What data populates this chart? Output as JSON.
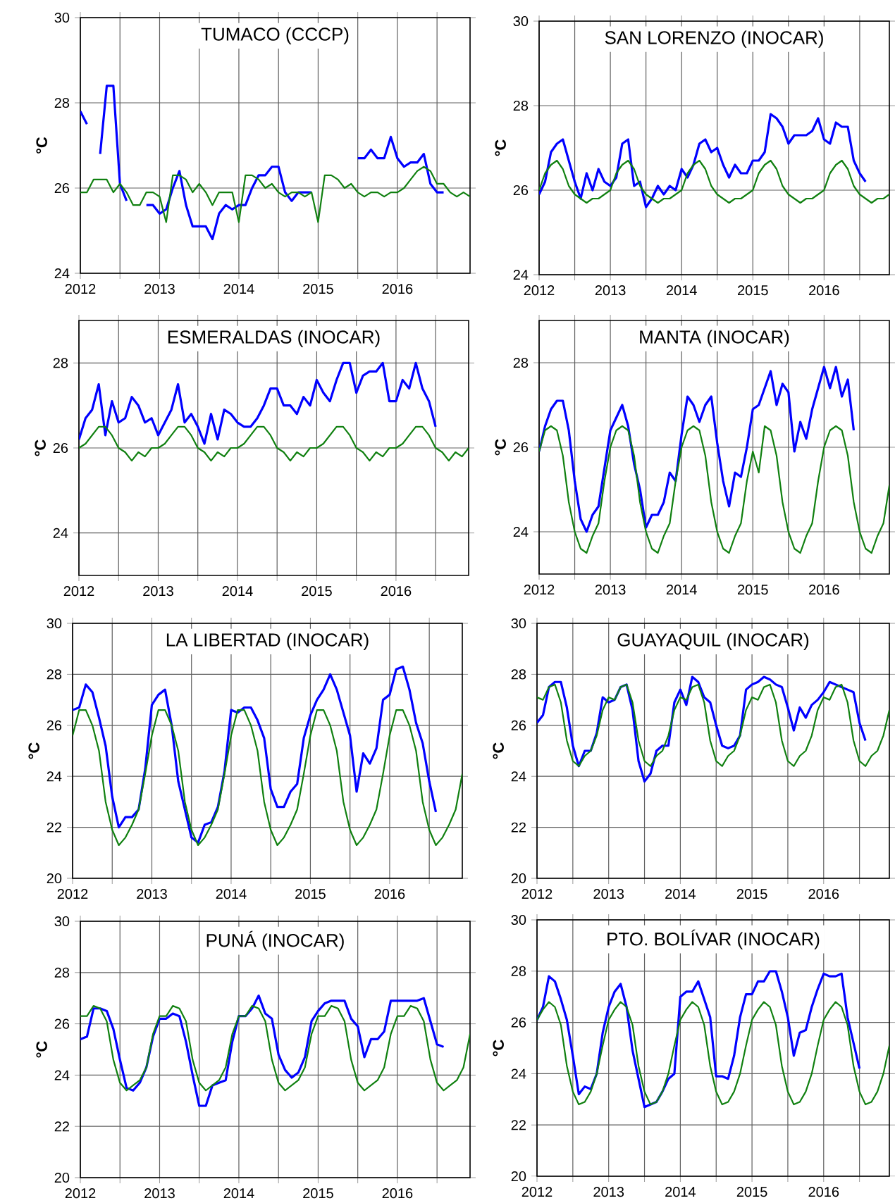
{
  "chart_data": [
    {
      "type": "line",
      "title": "TUMACO (CCCP)",
      "ylabel": "°C",
      "grid": true,
      "x": [
        "2012-01",
        "2012-02",
        "2012-03",
        "2012-04",
        "2012-05",
        "2012-06",
        "2012-07",
        "2012-08",
        "2012-09",
        "2012-10",
        "2012-11",
        "2012-12",
        "2013-01",
        "2013-02",
        "2013-03",
        "2013-04",
        "2013-05",
        "2013-06",
        "2013-07",
        "2013-08",
        "2013-09",
        "2013-10",
        "2013-11",
        "2013-12",
        "2014-01",
        "2014-02",
        "2014-03",
        "2014-04",
        "2014-05",
        "2014-06",
        "2014-07",
        "2014-08",
        "2014-09",
        "2014-10",
        "2014-11",
        "2014-12",
        "2015-01",
        "2015-02",
        "2015-03",
        "2015-04",
        "2015-05",
        "2015-06",
        "2015-07",
        "2015-08",
        "2015-09",
        "2015-10",
        "2015-11",
        "2015-12",
        "2016-01",
        "2016-02",
        "2016-03",
        "2016-04",
        "2016-05",
        "2016-06",
        "2016-07",
        "2016-08",
        "2016-09",
        "2016-10",
        "2016-11",
        "2016-12"
      ],
      "xlim": [
        "2012-01",
        "2016-12"
      ],
      "xticks": [
        "2012",
        {
          "value": "2012-07",
          "label": null
        },
        "2013",
        {
          "value": "2013-07",
          "label": null
        },
        "2014",
        {
          "value": "2014-07",
          "label": null
        },
        "2015",
        {
          "value": "2015-07",
          "label": null
        },
        "2016",
        {
          "value": "2016-07",
          "label": null
        }
      ],
      "ylim": [
        24,
        30
      ],
      "yticks": [
        24,
        26,
        28,
        30
      ],
      "series": [
        {
          "color": "#0000ff",
          "values": [
            27.8,
            27.5,
            null,
            26.8,
            28.4,
            28.4,
            26.1,
            25.7,
            null,
            null,
            25.6,
            25.6,
            25.4,
            25.5,
            26.0,
            26.4,
            25.6,
            25.1,
            25.1,
            25.1,
            24.8,
            25.4,
            25.6,
            25.5,
            25.6,
            25.6,
            26.0,
            26.3,
            26.3,
            26.5,
            26.5,
            25.9,
            25.7,
            25.9,
            25.9,
            25.9,
            null,
            null,
            null,
            null,
            null,
            null,
            26.7,
            26.7,
            26.9,
            26.7,
            26.7,
            27.2,
            26.7,
            26.5,
            26.6,
            26.6,
            26.8,
            26.1,
            25.9,
            25.9,
            null,
            null,
            null,
            null
          ]
        },
        {
          "color": "#108010",
          "values": [
            25.9,
            25.9,
            26.2,
            26.2,
            26.2,
            25.9,
            26.1,
            25.9,
            25.6,
            25.6,
            25.9,
            25.9,
            25.8,
            25.2,
            26.3,
            26.3,
            26.2,
            25.9,
            26.1,
            25.9,
            25.6,
            25.9,
            25.9,
            25.9,
            25.2,
            26.3,
            26.3,
            26.2,
            26.0,
            26.1,
            25.9,
            25.8,
            25.9,
            25.9,
            25.8,
            25.9,
            25.2,
            26.3,
            26.3,
            26.2,
            26.0,
            26.1,
            25.9,
            25.8,
            25.9,
            25.9,
            25.8,
            25.9,
            25.9,
            26.0,
            26.2,
            26.4,
            26.5,
            26.4,
            26.1,
            26.1,
            25.9,
            25.8,
            25.9,
            25.8
          ]
        }
      ]
    },
    {
      "type": "line",
      "title": "SAN LORENZO (INOCAR)",
      "ylabel": "°C",
      "grid": true,
      "x": [
        "2012-01",
        "2012-02",
        "2012-03",
        "2012-04",
        "2012-05",
        "2012-06",
        "2012-07",
        "2012-08",
        "2012-09",
        "2012-10",
        "2012-11",
        "2012-12",
        "2013-01",
        "2013-02",
        "2013-03",
        "2013-04",
        "2013-05",
        "2013-06",
        "2013-07",
        "2013-08",
        "2013-09",
        "2013-10",
        "2013-11",
        "2013-12",
        "2014-01",
        "2014-02",
        "2014-03",
        "2014-04",
        "2014-05",
        "2014-06",
        "2014-07",
        "2014-08",
        "2014-09",
        "2014-10",
        "2014-11",
        "2014-12",
        "2015-01",
        "2015-02",
        "2015-03",
        "2015-04",
        "2015-05",
        "2015-06",
        "2015-07",
        "2015-08",
        "2015-09",
        "2015-10",
        "2015-11",
        "2015-12",
        "2016-01",
        "2016-02",
        "2016-03",
        "2016-04",
        "2016-05",
        "2016-06",
        "2016-07",
        "2016-08",
        "2016-09",
        "2016-10",
        "2016-11",
        "2016-12"
      ],
      "xlim": [
        "2012-01",
        "2016-12"
      ],
      "xticks": [
        "2012",
        {
          "value": "2012-07",
          "label": null
        },
        "2013",
        {
          "value": "2013-07",
          "label": null
        },
        "2014",
        {
          "value": "2014-07",
          "label": null
        },
        "2015",
        {
          "value": "2015-07",
          "label": null
        },
        "2016",
        {
          "value": "2016-07",
          "label": null
        }
      ],
      "ylim": [
        24,
        30
      ],
      "yticks": [
        24,
        26,
        28,
        30
      ],
      "series": [
        {
          "color": "#0000ff",
          "values": [
            25.9,
            26.2,
            26.9,
            27.1,
            27.2,
            26.7,
            26.2,
            25.8,
            26.4,
            26.0,
            26.5,
            26.2,
            26.1,
            26.3,
            27.1,
            27.2,
            26.1,
            26.2,
            25.6,
            25.8,
            26.1,
            25.9,
            26.1,
            26.0,
            26.5,
            26.3,
            26.6,
            27.1,
            27.2,
            26.9,
            27.0,
            26.6,
            26.3,
            26.6,
            26.4,
            26.4,
            26.7,
            26.7,
            26.9,
            27.8,
            27.7,
            27.5,
            27.1,
            27.3,
            27.3,
            27.3,
            27.4,
            27.7,
            27.2,
            27.1,
            27.6,
            27.5,
            27.5,
            26.7,
            26.4,
            26.2,
            null,
            null,
            null,
            null
          ]
        },
        {
          "color": "#108010",
          "values": [
            26.0,
            26.4,
            26.6,
            26.7,
            26.5,
            26.1,
            25.9,
            25.8,
            25.7,
            25.8,
            25.8,
            25.9,
            26.0,
            26.4,
            26.6,
            26.7,
            26.5,
            26.1,
            25.9,
            25.8,
            25.7,
            25.8,
            25.8,
            25.9,
            26.0,
            26.4,
            26.6,
            26.7,
            26.5,
            26.1,
            25.9,
            25.8,
            25.7,
            25.8,
            25.8,
            25.9,
            26.0,
            26.4,
            26.6,
            26.7,
            26.5,
            26.1,
            25.9,
            25.8,
            25.7,
            25.8,
            25.8,
            25.9,
            26.0,
            26.4,
            26.6,
            26.7,
            26.5,
            26.1,
            25.9,
            25.8,
            25.7,
            25.8,
            25.8,
            25.9
          ]
        }
      ]
    },
    {
      "type": "line",
      "title": "ESMERALDAS (INOCAR)",
      "ylabel": "°C",
      "grid": true,
      "x": [
        "2012-01",
        "2012-02",
        "2012-03",
        "2012-04",
        "2012-05",
        "2012-06",
        "2012-07",
        "2012-08",
        "2012-09",
        "2012-10",
        "2012-11",
        "2012-12",
        "2013-01",
        "2013-02",
        "2013-03",
        "2013-04",
        "2013-05",
        "2013-06",
        "2013-07",
        "2013-08",
        "2013-09",
        "2013-10",
        "2013-11",
        "2013-12",
        "2014-01",
        "2014-02",
        "2014-03",
        "2014-04",
        "2014-05",
        "2014-06",
        "2014-07",
        "2014-08",
        "2014-09",
        "2014-10",
        "2014-11",
        "2014-12",
        "2015-01",
        "2015-02",
        "2015-03",
        "2015-04",
        "2015-05",
        "2015-06",
        "2015-07",
        "2015-08",
        "2015-09",
        "2015-10",
        "2015-11",
        "2015-12",
        "2016-01",
        "2016-02",
        "2016-03",
        "2016-04",
        "2016-05",
        "2016-06",
        "2016-07",
        "2016-08",
        "2016-09",
        "2016-10",
        "2016-11",
        "2016-12"
      ],
      "xlim": [
        "2012-01",
        "2016-12"
      ],
      "xticks": [
        "2012",
        {
          "value": "2012-07",
          "label": null
        },
        "2013",
        {
          "value": "2013-07",
          "label": null
        },
        "2014",
        {
          "value": "2014-07",
          "label": null
        },
        "2015",
        {
          "value": "2015-07",
          "label": null
        },
        "2016",
        {
          "value": "2016-07",
          "label": null
        }
      ],
      "ylim": [
        23,
        29
      ],
      "yticks": [
        24,
        26,
        28
      ],
      "series": [
        {
          "color": "#0000ff",
          "values": [
            26.2,
            26.7,
            26.9,
            27.5,
            26.3,
            27.1,
            26.6,
            26.7,
            27.2,
            27.0,
            26.6,
            26.7,
            26.3,
            26.6,
            26.9,
            27.5,
            26.6,
            26.8,
            26.5,
            26.1,
            26.8,
            26.2,
            26.9,
            26.8,
            26.6,
            26.5,
            26.5,
            26.7,
            27.0,
            27.4,
            27.4,
            27.0,
            27.0,
            26.8,
            27.2,
            27.0,
            27.6,
            27.3,
            27.1,
            27.6,
            28.0,
            28.0,
            27.3,
            27.7,
            27.8,
            27.8,
            28.0,
            27.1,
            27.1,
            27.6,
            27.4,
            28.0,
            27.4,
            27.1,
            26.5,
            null,
            null,
            null,
            null,
            null
          ]
        },
        {
          "color": "#108010",
          "values": [
            26.0,
            26.1,
            26.3,
            26.5,
            26.5,
            26.3,
            26.0,
            25.9,
            25.7,
            25.9,
            25.8,
            26.0,
            26.0,
            26.1,
            26.3,
            26.5,
            26.5,
            26.3,
            26.0,
            25.9,
            25.7,
            25.9,
            25.8,
            26.0,
            26.0,
            26.1,
            26.3,
            26.5,
            26.5,
            26.3,
            26.0,
            25.9,
            25.7,
            25.9,
            25.8,
            26.0,
            26.0,
            26.1,
            26.3,
            26.5,
            26.5,
            26.3,
            26.0,
            25.9,
            25.7,
            25.9,
            25.8,
            26.0,
            26.0,
            26.1,
            26.3,
            26.5,
            26.5,
            26.3,
            26.0,
            25.9,
            25.7,
            25.9,
            25.8,
            26.0
          ]
        }
      ]
    },
    {
      "type": "line",
      "title": "MANTA (INOCAR)",
      "ylabel": "°C",
      "grid": true,
      "x": [
        "2012-01",
        "2012-02",
        "2012-03",
        "2012-04",
        "2012-05",
        "2012-06",
        "2012-07",
        "2012-08",
        "2012-09",
        "2012-10",
        "2012-11",
        "2012-12",
        "2013-01",
        "2013-02",
        "2013-03",
        "2013-04",
        "2013-05",
        "2013-06",
        "2013-07",
        "2013-08",
        "2013-09",
        "2013-10",
        "2013-11",
        "2013-12",
        "2014-01",
        "2014-02",
        "2014-03",
        "2014-04",
        "2014-05",
        "2014-06",
        "2014-07",
        "2014-08",
        "2014-09",
        "2014-10",
        "2014-11",
        "2014-12",
        "2015-01",
        "2015-02",
        "2015-03",
        "2015-04",
        "2015-05",
        "2015-06",
        "2015-07",
        "2015-08",
        "2015-09",
        "2015-10",
        "2015-11",
        "2015-12",
        "2016-01",
        "2016-02",
        "2016-03",
        "2016-04",
        "2016-05",
        "2016-06",
        "2016-07",
        "2016-08",
        "2016-09",
        "2016-10",
        "2016-11",
        "2016-12"
      ],
      "xlim": [
        "2012-01",
        "2016-12"
      ],
      "xticks": [
        "2012",
        {
          "value": "2012-07",
          "label": null
        },
        "2013",
        {
          "value": "2013-07",
          "label": null
        },
        "2014",
        {
          "value": "2014-07",
          "label": null
        },
        "2015",
        {
          "value": "2015-07",
          "label": null
        },
        "2016",
        {
          "value": "2016-07",
          "label": null
        }
      ],
      "ylim": [
        23,
        29
      ],
      "yticks": [
        24,
        26,
        28
      ],
      "series": [
        {
          "color": "#0000ff",
          "values": [
            25.9,
            26.5,
            26.9,
            27.1,
            27.1,
            26.4,
            25.2,
            24.3,
            24.0,
            24.4,
            24.6,
            25.5,
            26.4,
            26.7,
            27.0,
            26.5,
            25.6,
            25.0,
            24.1,
            24.4,
            24.4,
            24.7,
            25.4,
            25.2,
            26.3,
            27.2,
            27.0,
            26.6,
            27.0,
            27.2,
            26.1,
            25.2,
            24.6,
            25.4,
            25.3,
            26.0,
            26.9,
            27.0,
            27.4,
            27.8,
            27.0,
            27.5,
            27.3,
            25.9,
            26.6,
            26.2,
            26.9,
            27.4,
            27.9,
            27.4,
            27.9,
            27.2,
            27.6,
            26.4,
            null,
            null,
            null,
            null,
            null,
            null
          ]
        },
        {
          "color": "#108010",
          "values": [
            25.9,
            26.4,
            26.5,
            26.4,
            25.8,
            24.7,
            24.0,
            23.6,
            23.5,
            23.9,
            24.2,
            25.2,
            26.0,
            26.4,
            26.5,
            26.4,
            25.8,
            24.7,
            24.0,
            23.6,
            23.5,
            23.9,
            24.2,
            25.2,
            26.0,
            26.4,
            26.5,
            26.4,
            25.8,
            24.7,
            24.0,
            23.6,
            23.5,
            23.9,
            24.2,
            25.2,
            25.9,
            25.4,
            26.5,
            26.4,
            25.8,
            24.7,
            24.0,
            23.6,
            23.5,
            23.9,
            24.2,
            25.2,
            26.0,
            26.4,
            26.5,
            26.4,
            25.8,
            24.7,
            24.0,
            23.6,
            23.5,
            23.9,
            24.2,
            25.1
          ]
        }
      ]
    },
    {
      "type": "line",
      "title": "LA LIBERTAD (INOCAR)",
      "ylabel": "°C",
      "grid": true,
      "x": [
        "2012-01",
        "2012-02",
        "2012-03",
        "2012-04",
        "2012-05",
        "2012-06",
        "2012-07",
        "2012-08",
        "2012-09",
        "2012-10",
        "2012-11",
        "2012-12",
        "2013-01",
        "2013-02",
        "2013-03",
        "2013-04",
        "2013-05",
        "2013-06",
        "2013-07",
        "2013-08",
        "2013-09",
        "2013-10",
        "2013-11",
        "2013-12",
        "2014-01",
        "2014-02",
        "2014-03",
        "2014-04",
        "2014-05",
        "2014-06",
        "2014-07",
        "2014-08",
        "2014-09",
        "2014-10",
        "2014-11",
        "2014-12",
        "2015-01",
        "2015-02",
        "2015-03",
        "2015-04",
        "2015-05",
        "2015-06",
        "2015-07",
        "2015-08",
        "2015-09",
        "2015-10",
        "2015-11",
        "2015-12",
        "2016-01",
        "2016-02",
        "2016-03",
        "2016-04",
        "2016-05",
        "2016-06",
        "2016-07",
        "2016-08",
        "2016-09",
        "2016-10",
        "2016-11",
        "2016-12"
      ],
      "xlim": [
        "2012-01",
        "2016-12"
      ],
      "xticks": [
        "2012",
        {
          "value": "2012-07",
          "label": null
        },
        "2013",
        {
          "value": "2013-07",
          "label": null
        },
        "2014",
        {
          "value": "2014-07",
          "label": null
        },
        "2015",
        {
          "value": "2015-07",
          "label": null
        },
        "2016",
        {
          "value": "2016-07",
          "label": null
        }
      ],
      "ylim": [
        20,
        30
      ],
      "yticks": [
        20,
        22,
        24,
        26,
        28,
        30
      ],
      "series": [
        {
          "color": "#0000ff",
          "values": [
            26.6,
            26.7,
            27.6,
            27.3,
            26.3,
            25.2,
            23.2,
            22.0,
            22.4,
            22.4,
            22.7,
            24.3,
            26.8,
            27.2,
            27.4,
            26.0,
            23.8,
            22.7,
            21.6,
            21.4,
            22.1,
            22.2,
            22.8,
            24.2,
            26.6,
            26.5,
            26.7,
            26.7,
            26.2,
            25.5,
            23.5,
            22.8,
            22.8,
            23.4,
            23.7,
            25.5,
            26.4,
            27.0,
            27.4,
            28.0,
            27.4,
            26.5,
            25.6,
            23.4,
            24.9,
            24.5,
            25.1,
            27.0,
            27.2,
            28.2,
            28.3,
            27.4,
            26.1,
            25.3,
            23.8,
            22.6,
            null,
            null,
            null,
            null
          ]
        },
        {
          "color": "#108010",
          "values": [
            25.6,
            26.6,
            26.6,
            26.0,
            25.0,
            23.0,
            21.9,
            21.3,
            21.6,
            22.1,
            22.7,
            24.1,
            25.6,
            26.6,
            26.6,
            26.0,
            25.0,
            23.0,
            21.9,
            21.3,
            21.6,
            22.1,
            22.7,
            24.1,
            25.6,
            26.6,
            26.6,
            26.0,
            25.0,
            23.0,
            21.9,
            21.3,
            21.6,
            22.1,
            22.7,
            24.1,
            25.6,
            26.6,
            26.6,
            26.0,
            25.0,
            23.0,
            21.9,
            21.3,
            21.6,
            22.1,
            22.7,
            24.1,
            25.6,
            26.6,
            26.6,
            26.0,
            25.0,
            23.0,
            21.9,
            21.3,
            21.6,
            22.1,
            22.7,
            24.1
          ]
        }
      ]
    },
    {
      "type": "line",
      "title": "GUAYAQUIL (INOCAR)",
      "ylabel": "°C",
      "grid": true,
      "x": [
        "2012-01",
        "2012-02",
        "2012-03",
        "2012-04",
        "2012-05",
        "2012-06",
        "2012-07",
        "2012-08",
        "2012-09",
        "2012-10",
        "2012-11",
        "2012-12",
        "2013-01",
        "2013-02",
        "2013-03",
        "2013-04",
        "2013-05",
        "2013-06",
        "2013-07",
        "2013-08",
        "2013-09",
        "2013-10",
        "2013-11",
        "2013-12",
        "2014-01",
        "2014-02",
        "2014-03",
        "2014-04",
        "2014-05",
        "2014-06",
        "2014-07",
        "2014-08",
        "2014-09",
        "2014-10",
        "2014-11",
        "2014-12",
        "2015-01",
        "2015-02",
        "2015-03",
        "2015-04",
        "2015-05",
        "2015-06",
        "2015-07",
        "2015-08",
        "2015-09",
        "2015-10",
        "2015-11",
        "2015-12",
        "2016-01",
        "2016-02",
        "2016-03",
        "2016-04",
        "2016-05",
        "2016-06",
        "2016-07",
        "2016-08",
        "2016-09",
        "2016-10",
        "2016-11",
        "2016-12"
      ],
      "xlim": [
        "2012-01",
        "2016-12"
      ],
      "xticks": [
        "2012",
        {
          "value": "2012-07",
          "label": null
        },
        "2013",
        {
          "value": "2013-07",
          "label": null
        },
        "2014",
        {
          "value": "2014-07",
          "label": null
        },
        "2015",
        {
          "value": "2015-07",
          "label": null
        },
        "2016",
        {
          "value": "2016-07",
          "label": null
        }
      ],
      "ylim": [
        20,
        30
      ],
      "yticks": [
        20,
        22,
        24,
        26,
        28,
        30
      ],
      "series": [
        {
          "color": "#0000ff",
          "values": [
            26.1,
            26.4,
            27.5,
            27.7,
            27.7,
            26.7,
            25.2,
            24.4,
            25.0,
            25.0,
            25.7,
            27.1,
            26.9,
            27.0,
            27.5,
            27.6,
            26.6,
            24.6,
            23.8,
            24.1,
            25.0,
            25.2,
            25.2,
            26.9,
            27.4,
            26.8,
            27.9,
            27.7,
            27.1,
            26.9,
            26.0,
            25.2,
            25.1,
            25.2,
            25.6,
            27.4,
            27.6,
            27.7,
            27.9,
            27.8,
            27.6,
            27.5,
            26.7,
            25.8,
            26.7,
            26.3,
            26.8,
            27.0,
            27.3,
            27.7,
            27.6,
            27.5,
            27.4,
            27.3,
            26.1,
            25.4,
            null,
            null,
            null,
            null
          ]
        },
        {
          "color": "#108010",
          "values": [
            27.1,
            27.0,
            27.5,
            27.6,
            26.9,
            25.4,
            24.6,
            24.4,
            24.8,
            25.0,
            25.6,
            26.6,
            27.1,
            27.0,
            27.5,
            27.6,
            26.9,
            25.4,
            24.6,
            24.4,
            24.8,
            25.0,
            25.6,
            26.6,
            27.1,
            27.0,
            27.5,
            27.6,
            26.9,
            25.4,
            24.6,
            24.4,
            24.8,
            25.0,
            25.6,
            26.6,
            27.1,
            27.0,
            27.5,
            27.6,
            26.9,
            25.4,
            24.6,
            24.4,
            24.8,
            25.0,
            25.6,
            26.6,
            27.1,
            27.0,
            27.5,
            27.6,
            26.9,
            25.4,
            24.6,
            24.4,
            24.8,
            25.0,
            25.6,
            26.6
          ]
        }
      ]
    },
    {
      "type": "line",
      "title": "PUNÁ (INOCAR)",
      "ylabel": "°C",
      "grid": true,
      "x": [
        "2012-01",
        "2012-02",
        "2012-03",
        "2012-04",
        "2012-05",
        "2012-06",
        "2012-07",
        "2012-08",
        "2012-09",
        "2012-10",
        "2012-11",
        "2012-12",
        "2013-01",
        "2013-02",
        "2013-03",
        "2013-04",
        "2013-05",
        "2013-06",
        "2013-07",
        "2013-08",
        "2013-09",
        "2013-10",
        "2013-11",
        "2013-12",
        "2014-01",
        "2014-02",
        "2014-03",
        "2014-04",
        "2014-05",
        "2014-06",
        "2014-07",
        "2014-08",
        "2014-09",
        "2014-10",
        "2014-11",
        "2014-12",
        "2015-01",
        "2015-02",
        "2015-03",
        "2015-04",
        "2015-05",
        "2015-06",
        "2015-07",
        "2015-08",
        "2015-09",
        "2015-10",
        "2015-11",
        "2015-12",
        "2016-01",
        "2016-02",
        "2016-03",
        "2016-04",
        "2016-05",
        "2016-06",
        "2016-07",
        "2016-08",
        "2016-09",
        "2016-10",
        "2016-11",
        "2016-12"
      ],
      "xlim": [
        "2012-01",
        "2016-12"
      ],
      "xticks": [
        "2012",
        {
          "value": "2012-07",
          "label": null
        },
        "2013",
        {
          "value": "2013-07",
          "label": null
        },
        "2014",
        {
          "value": "2014-07",
          "label": null
        },
        "2015",
        {
          "value": "2015-07",
          "label": null
        },
        "2016",
        {
          "value": "2016-07",
          "label": null
        }
      ],
      "ylim": [
        20,
        30
      ],
      "yticks": [
        20,
        22,
        24,
        26,
        28,
        30
      ],
      "series": [
        {
          "color": "#0000ff",
          "values": [
            25.4,
            25.5,
            26.6,
            26.6,
            26.5,
            25.8,
            24.6,
            23.5,
            23.4,
            23.7,
            24.3,
            25.5,
            26.2,
            26.2,
            26.4,
            26.3,
            25.3,
            24.0,
            22.8,
            22.8,
            23.6,
            23.7,
            23.8,
            25.3,
            26.3,
            26.3,
            26.6,
            27.1,
            26.4,
            26.2,
            24.8,
            24.2,
            23.9,
            24.1,
            24.7,
            26.1,
            26.5,
            26.8,
            26.9,
            26.9,
            26.9,
            26.2,
            25.9,
            24.7,
            25.4,
            25.4,
            25.7,
            26.9,
            26.9,
            26.9,
            26.9,
            26.9,
            27.0,
            26.1,
            25.2,
            25.1,
            null,
            null,
            null,
            null
          ]
        },
        {
          "color": "#108010",
          "values": [
            26.3,
            26.3,
            26.7,
            26.6,
            26.1,
            24.6,
            23.7,
            23.4,
            23.6,
            23.8,
            24.3,
            25.6,
            26.3,
            26.3,
            26.7,
            26.6,
            26.1,
            24.6,
            23.7,
            23.4,
            23.6,
            23.8,
            24.3,
            25.6,
            26.3,
            26.3,
            26.7,
            26.6,
            26.1,
            24.6,
            23.7,
            23.4,
            23.6,
            23.8,
            24.3,
            25.6,
            26.3,
            26.3,
            26.7,
            26.6,
            26.1,
            24.6,
            23.7,
            23.4,
            23.6,
            23.8,
            24.3,
            25.6,
            26.3,
            26.3,
            26.7,
            26.6,
            26.1,
            24.6,
            23.7,
            23.4,
            23.6,
            23.8,
            24.3,
            25.6
          ]
        }
      ]
    },
    {
      "type": "line",
      "title": "PTO. BOLÍVAR (INOCAR)",
      "ylabel": "°C",
      "grid": true,
      "x": [
        "2012-01",
        "2012-02",
        "2012-03",
        "2012-04",
        "2012-05",
        "2012-06",
        "2012-07",
        "2012-08",
        "2012-09",
        "2012-10",
        "2012-11",
        "2012-12",
        "2013-01",
        "2013-02",
        "2013-03",
        "2013-04",
        "2013-05",
        "2013-06",
        "2013-07",
        "2013-08",
        "2013-09",
        "2013-10",
        "2013-11",
        "2013-12",
        "2014-01",
        "2014-02",
        "2014-03",
        "2014-04",
        "2014-05",
        "2014-06",
        "2014-07",
        "2014-08",
        "2014-09",
        "2014-10",
        "2014-11",
        "2014-12",
        "2015-01",
        "2015-02",
        "2015-03",
        "2015-04",
        "2015-05",
        "2015-06",
        "2015-07",
        "2015-08",
        "2015-09",
        "2015-10",
        "2015-11",
        "2015-12",
        "2016-01",
        "2016-02",
        "2016-03",
        "2016-04",
        "2016-05",
        "2016-06",
        "2016-07",
        "2016-08",
        "2016-09",
        "2016-10",
        "2016-11",
        "2016-12"
      ],
      "xlim": [
        "2012-01",
        "2016-12"
      ],
      "xticks": [
        "2012",
        {
          "value": "2012-07",
          "label": null
        },
        "2013",
        {
          "value": "2013-07",
          "label": null
        },
        "2014",
        {
          "value": "2014-07",
          "label": null
        },
        "2015",
        {
          "value": "2015-07",
          "label": null
        },
        "2016",
        {
          "value": "2016-07",
          "label": null
        }
      ],
      "ylim": [
        20,
        30
      ],
      "yticks": [
        20,
        22,
        24,
        26,
        28,
        30
      ],
      "series": [
        {
          "color": "#0000ff",
          "values": [
            26.1,
            26.6,
            27.8,
            27.6,
            26.9,
            26.1,
            24.7,
            23.2,
            23.5,
            23.4,
            24.0,
            25.6,
            26.6,
            27.2,
            27.5,
            26.6,
            24.9,
            23.8,
            22.7,
            22.8,
            22.9,
            23.3,
            23.8,
            24.0,
            27.0,
            27.2,
            27.2,
            27.6,
            26.9,
            26.2,
            23.9,
            23.9,
            23.8,
            24.7,
            26.2,
            27.1,
            27.1,
            27.6,
            27.6,
            28.0,
            28.0,
            27.2,
            26.2,
            24.7,
            25.6,
            25.7,
            26.6,
            27.3,
            27.9,
            27.8,
            27.8,
            27.9,
            26.2,
            25.2,
            24.2,
            null,
            null,
            null,
            null,
            null
          ]
        },
        {
          "color": "#108010",
          "values": [
            26.1,
            26.5,
            26.8,
            26.6,
            25.9,
            24.3,
            23.3,
            22.8,
            22.9,
            23.3,
            24.0,
            25.1,
            26.1,
            26.5,
            26.8,
            26.6,
            25.9,
            24.3,
            23.3,
            22.8,
            22.9,
            23.3,
            24.0,
            25.1,
            26.1,
            26.5,
            26.8,
            26.6,
            25.9,
            24.3,
            23.3,
            22.8,
            22.9,
            23.3,
            24.0,
            25.1,
            26.1,
            26.5,
            26.8,
            26.6,
            25.9,
            24.3,
            23.3,
            22.8,
            22.9,
            23.3,
            24.0,
            25.1,
            26.1,
            26.5,
            26.8,
            26.6,
            25.9,
            24.3,
            23.3,
            22.8,
            22.9,
            23.3,
            24.0,
            25.1
          ]
        }
      ]
    }
  ]
}
